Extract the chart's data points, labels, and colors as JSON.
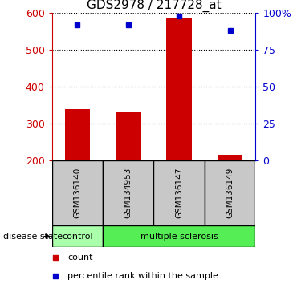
{
  "title": "GDS2978 / 217728_at",
  "samples": [
    "GSM136140",
    "GSM134953",
    "GSM136147",
    "GSM136149"
  ],
  "counts": [
    340,
    330,
    585,
    215
  ],
  "percentile_ranks": [
    92,
    92,
    98,
    88
  ],
  "y_min": 200,
  "y_max": 600,
  "y_ticks": [
    200,
    300,
    400,
    500,
    600
  ],
  "y_right_ticks": [
    0,
    25,
    50,
    75,
    100
  ],
  "y_right_labels": [
    "0",
    "25",
    "50",
    "75",
    "100%"
  ],
  "bar_color": "#cc0000",
  "dot_color": "#0000cc",
  "control_color": "#aaffaa",
  "ms_color": "#55ee55",
  "disease_state_label": "disease state",
  "legend_count_label": "count",
  "legend_percentile_label": "percentile rank within the sample",
  "ylabel_color_left": "#cc0000",
  "ylabel_color_right": "#0000cc",
  "tick_area_bg": "#c8c8c8",
  "bar_width": 0.5
}
